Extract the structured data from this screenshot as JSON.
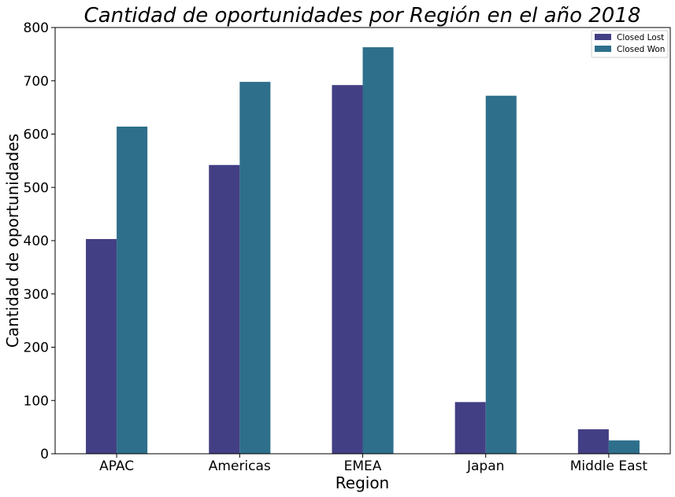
{
  "chart_data": {
    "type": "bar",
    "title": "Cantidad de oportunidades por Región en el año 2018",
    "xlabel": "Region",
    "ylabel": "Cantidad de oportunidades",
    "categories": [
      "APAC",
      "Americas",
      "EMEA",
      "Japan",
      "Middle East"
    ],
    "series": [
      {
        "name": "Closed Lost",
        "color": "#433f84",
        "values": [
          403,
          542,
          692,
          97,
          46
        ]
      },
      {
        "name": "Closed Won",
        "color": "#2e6f8b",
        "values": [
          614,
          698,
          763,
          672,
          25
        ]
      }
    ],
    "ylim": [
      0,
      800
    ],
    "yticks": [
      "0",
      "100",
      "200",
      "300",
      "400",
      "500",
      "600",
      "700",
      "800"
    ],
    "grid": false,
    "legend_position": "top-right"
  }
}
